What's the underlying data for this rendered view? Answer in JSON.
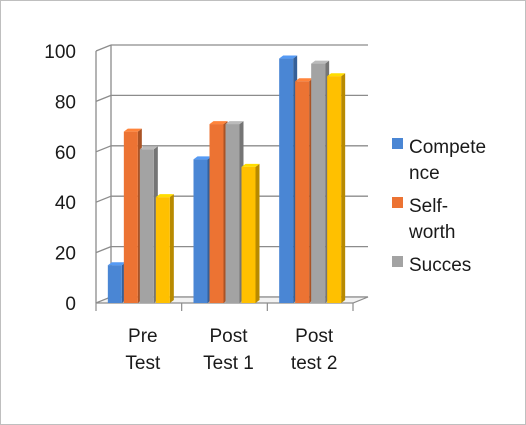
{
  "chart_data": {
    "type": "bar",
    "style": "3d-clustered-column",
    "categories": [
      [
        "Pre",
        "Test"
      ],
      [
        "Post",
        "Test 1"
      ],
      [
        "Post",
        "test 2"
      ]
    ],
    "series": [
      {
        "name": [
          "Compete",
          "nce"
        ],
        "color": "#4a86d4",
        "values": [
          15,
          57,
          97
        ]
      },
      {
        "name": [
          "Self-",
          "worth"
        ],
        "color": "#ec7333",
        "values": [
          68,
          71,
          88
        ]
      },
      {
        "name": [
          "Succes"
        ],
        "color": "#a3a3a3",
        "values": [
          61,
          71,
          95
        ]
      },
      {
        "color": "#ffc000",
        "values": [
          42,
          54,
          90
        ]
      }
    ],
    "ylim": [
      0,
      100
    ],
    "yticks": [
      0,
      20,
      40,
      60,
      80,
      100
    ],
    "grid": true,
    "legend_position": "right"
  }
}
